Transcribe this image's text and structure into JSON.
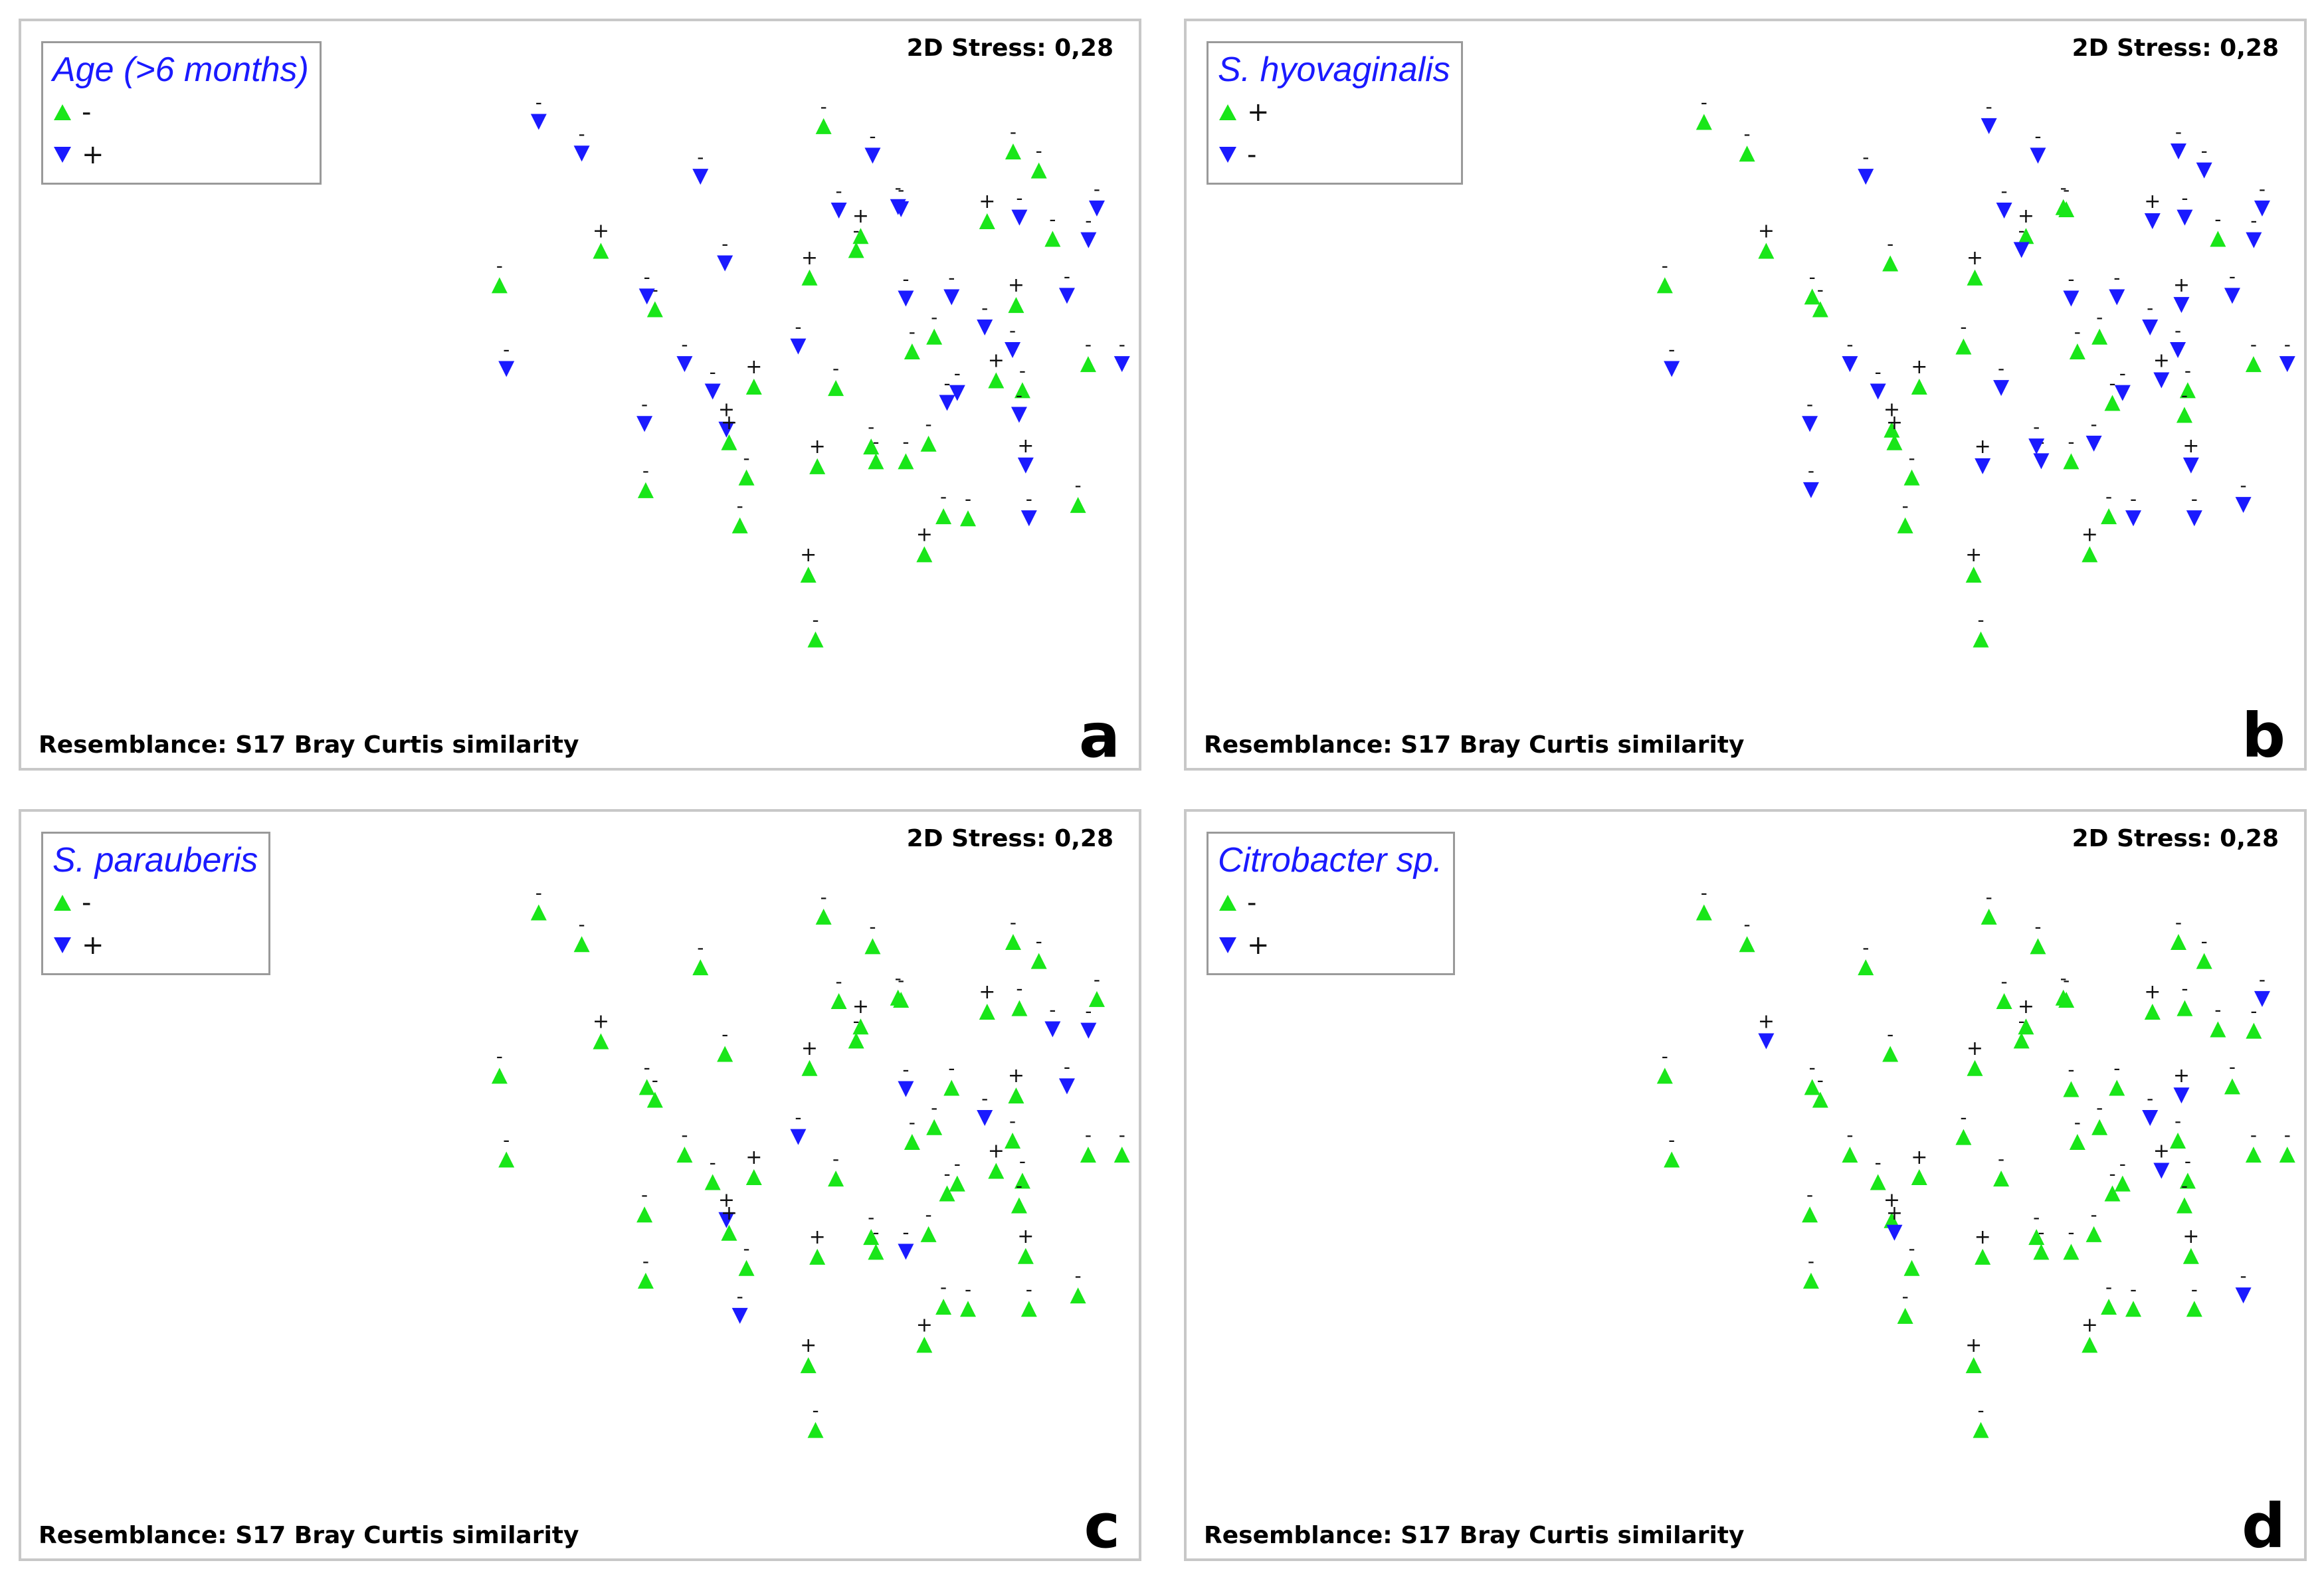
{
  "colors": {
    "green": "#19e619",
    "blue": "#1a1aff",
    "border": "#c8c8c8"
  },
  "points": [
    {
      "x": 93.3,
      "y": 25.7,
      "lbl": "-"
    },
    {
      "x": 95.6,
      "y": 37.6,
      "lbl": "-"
    },
    {
      "x": 145.3,
      "y": 29.1,
      "lbl": "-"
    },
    {
      "x": 120.8,
      "y": 7.0,
      "lbl": "-"
    },
    {
      "x": 160.5,
      "y": 10.3,
      "lbl": "-"
    },
    {
      "x": 106.4,
      "y": 2.5,
      "lbl": "-"
    },
    {
      "x": 127.2,
      "y": 20.8,
      "lbl": "+"
    },
    {
      "x": 142.6,
      "y": 27.3,
      "lbl": "-"
    },
    {
      "x": 168.7,
      "y": 22.6,
      "lbl": "-"
    },
    {
      "x": 155.2,
      "y": 36.9,
      "lbl": "-"
    },
    {
      "x": 164.6,
      "y": 40.8,
      "lbl": "-"
    },
    {
      "x": 178.4,
      "y": 40.1,
      "lbl": "+"
    },
    {
      "x": 169.2,
      "y": 46.2,
      "lbl": "+"
    },
    {
      "x": 170.1,
      "y": 48.0,
      "lbl": "+"
    },
    {
      "x": 175.9,
      "y": 53.0,
      "lbl": "-"
    },
    {
      "x": 173.7,
      "y": 59.8,
      "lbl": "-"
    },
    {
      "x": 196.6,
      "y": 66.8,
      "lbl": "+"
    },
    {
      "x": 199.6,
      "y": 51.4,
      "lbl": "+"
    },
    {
      "x": 231.3,
      "y": 35.1,
      "lbl": "-"
    },
    {
      "x": 238.7,
      "y": 33.0,
      "lbl": "-"
    },
    {
      "x": 236.8,
      "y": 48.2,
      "lbl": "-"
    },
    {
      "x": 235.4,
      "y": 63.9,
      "lbl": "+"
    },
    {
      "x": 243.0,
      "y": 42.4,
      "lbl": "-"
    },
    {
      "x": 268.2,
      "y": 40.6,
      "lbl": "-"
    },
    {
      "x": 290.2,
      "y": 36.9,
      "lbl": "-"
    },
    {
      "x": 241.8,
      "y": 58.5,
      "lbl": "-"
    },
    {
      "x": 205.8,
      "y": 40.3,
      "lbl": "-"
    },
    {
      "x": 197.0,
      "y": 24.6,
      "lbl": "+"
    },
    {
      "x": 201.7,
      "y": 3.1,
      "lbl": "-"
    },
    {
      "x": 193.2,
      "y": 34.4,
      "lbl": "-"
    },
    {
      "x": 199.0,
      "y": 76.0,
      "lbl": "-"
    },
    {
      "x": 229.2,
      "y": 50.7,
      "lbl": "-"
    },
    {
      "x": 259.4,
      "y": 39.2,
      "lbl": "+"
    },
    {
      "x": 255.6,
      "y": 31.7,
      "lbl": "-"
    },
    {
      "x": 264.9,
      "y": 34.9,
      "lbl": "-"
    },
    {
      "x": 266.1,
      "y": 28.5,
      "lbl": "+"
    },
    {
      "x": 256.4,
      "y": 16.6,
      "lbl": "+"
    },
    {
      "x": 273.7,
      "y": 9.4,
      "lbl": "-"
    },
    {
      "x": 301.5,
      "y": 36.9,
      "lbl": "-"
    },
    {
      "x": 290.3,
      "y": 19.3,
      "lbl": "-"
    },
    {
      "x": 229.2,
      "y": 27.6,
      "lbl": "-"
    },
    {
      "x": 269.3,
      "y": 51.3,
      "lbl": "+"
    },
    {
      "x": 283.1,
      "y": 27.2,
      "lbl": "-"
    },
    {
      "x": 270.4,
      "y": 58.8,
      "lbl": "-"
    },
    {
      "x": 278.3,
      "y": 19.1,
      "lbl": "-"
    },
    {
      "x": 250.0,
      "y": 58.8,
      "lbl": "-"
    },
    {
      "x": 267.2,
      "y": 16.1,
      "lbl": "-"
    },
    {
      "x": 214.1,
      "y": 18.7,
      "lbl": "+"
    },
    {
      "x": 226.6,
      "y": 14.6,
      "lbl": "-"
    },
    {
      "x": 219.2,
      "y": 50.7,
      "lbl": "-"
    },
    {
      "x": 206.8,
      "y": 15.1,
      "lbl": "-"
    },
    {
      "x": 141.8,
      "y": 45.4,
      "lbl": "-"
    },
    {
      "x": 142.2,
      "y": 54.8,
      "lbl": "-"
    },
    {
      "x": 227.6,
      "y": 14.9,
      "lbl": "-"
    },
    {
      "x": 217.6,
      "y": 48.6,
      "lbl": "-"
    },
    {
      "x": 246.4,
      "y": 41.0,
      "lbl": "-"
    },
    {
      "x": 218.1,
      "y": 7.3,
      "lbl": "-"
    },
    {
      "x": 244.5,
      "y": 27.4,
      "lbl": "-"
    },
    {
      "x": 267.1,
      "y": 44.1,
      "lbl": "-"
    },
    {
      "x": 265.1,
      "y": 6.7,
      "lbl": "-"
    },
    {
      "x": 293.1,
      "y": 14.8,
      "lbl": "-"
    },
    {
      "x": 212.6,
      "y": 20.7,
      "lbl": "-"
    },
    {
      "x": 286.8,
      "y": 56.9,
      "lbl": "-"
    }
  ],
  "panels": [
    {
      "letter": "a",
      "stress": "2D Stress: 0,28",
      "resemblance": "Resemblance: S17 Bray Curtis similarity",
      "legend": {
        "title": "Age (>6 months)",
        "entries": [
          {
            "shape": "up",
            "color": "#19e619",
            "label": "-"
          },
          {
            "shape": "down",
            "color": "#1a1aff",
            "label": "+"
          }
        ]
      },
      "chart_data": {
        "type": "scatter",
        "title": "Age (>6 months)",
        "xlim": [
          0,
          1
        ],
        "ylim": [
          0,
          1
        ],
        "series": [
          {
            "name": "-",
            "marker": "triangle-up",
            "color": "#19e619"
          },
          {
            "name": "+",
            "marker": "triangle-down",
            "color": "#1a1aff"
          }
        ],
        "groups": [
          0,
          1,
          0,
          1,
          1,
          1,
          0,
          1,
          1,
          1,
          1,
          0,
          1,
          0,
          0,
          0,
          0,
          0,
          0,
          0,
          0,
          0,
          1,
          0,
          0,
          0,
          0,
          0,
          0,
          1,
          0,
          0,
          0,
          1,
          1,
          0,
          0,
          0,
          1,
          1,
          1,
          1,
          1,
          1,
          0,
          0,
          1,
          0,
          1,
          0,
          1,
          1,
          0,
          1,
          0,
          1,
          1,
          1,
          1,
          0,
          1,
          0,
          0
        ]
      }
    },
    {
      "letter": "b",
      "stress": "2D Stress: 0,28",
      "resemblance": "Resemblance: S17 Bray Curtis similarity",
      "legend": {
        "title": "S. hyovaginalis",
        "entries": [
          {
            "shape": "up",
            "color": "#19e619",
            "label": "+"
          },
          {
            "shape": "down",
            "color": "#1a1aff",
            "label": "-"
          }
        ]
      },
      "chart_data": {
        "type": "scatter",
        "title": "S. hyovaginalis",
        "xlim": [
          0,
          1
        ],
        "ylim": [
          0,
          1
        ],
        "series": [
          {
            "name": "+",
            "marker": "triangle-up",
            "color": "#19e619"
          },
          {
            "name": "-",
            "marker": "triangle-down",
            "color": "#1a1aff"
          }
        ],
        "groups": [
          0,
          1,
          0,
          0,
          1,
          0,
          0,
          0,
          0,
          1,
          1,
          0,
          0,
          0,
          0,
          0,
          0,
          1,
          0,
          0,
          1,
          0,
          0,
          0,
          0,
          0,
          1,
          0,
          1,
          0,
          0,
          0,
          1,
          1,
          1,
          1,
          1,
          1,
          1,
          1,
          1,
          1,
          1,
          1,
          0,
          1,
          1,
          0,
          0,
          1,
          1,
          1,
          1,
          0,
          1,
          1,
          1,
          1,
          0,
          1,
          1,
          1,
          1
        ]
      }
    },
    {
      "letter": "c",
      "stress": "2D Stress: 0,28",
      "resemblance": "Resemblance: S17 Bray Curtis similarity",
      "legend": {
        "title": "S. parauberis",
        "entries": [
          {
            "shape": "up",
            "color": "#19e619",
            "label": "-"
          },
          {
            "shape": "down",
            "color": "#1a1aff",
            "label": "+"
          }
        ]
      },
      "chart_data": {
        "type": "scatter",
        "title": "S. parauberis",
        "xlim": [
          0,
          1
        ],
        "ylim": [
          0,
          1
        ],
        "series": [
          {
            "name": "-",
            "marker": "triangle-up",
            "color": "#19e619"
          },
          {
            "name": "+",
            "marker": "triangle-down",
            "color": "#1a1aff"
          }
        ],
        "groups": [
          0,
          0,
          0,
          0,
          0,
          0,
          0,
          0,
          0,
          0,
          0,
          0,
          1,
          0,
          0,
          1,
          0,
          0,
          0,
          0,
          0,
          0,
          0,
          0,
          0,
          0,
          0,
          0,
          0,
          1,
          0,
          1,
          0,
          1,
          0,
          0,
          0,
          0,
          0,
          1,
          1,
          0,
          1,
          0,
          1,
          0,
          0,
          0,
          0,
          0,
          0,
          0,
          0,
          0,
          0,
          0,
          0,
          0,
          0,
          0,
          0,
          0,
          0
        ]
      }
    },
    {
      "letter": "d",
      "stress": "2D Stress: 0,28",
      "resemblance": "Resemblance: S17 Bray Curtis similarity",
      "legend": {
        "title": "Citrobacter sp.",
        "entries": [
          {
            "shape": "up",
            "color": "#19e619",
            "label": "-"
          },
          {
            "shape": "down",
            "color": "#1a1aff",
            "label": "+"
          }
        ]
      },
      "chart_data": {
        "type": "scatter",
        "title": "Citrobacter sp.",
        "xlim": [
          0,
          1
        ],
        "ylim": [
          0,
          1
        ],
        "series": [
          {
            "name": "-",
            "marker": "triangle-up",
            "color": "#19e619"
          },
          {
            "name": "+",
            "marker": "triangle-down",
            "color": "#1a1aff"
          }
        ],
        "groups": [
          0,
          0,
          0,
          0,
          0,
          0,
          1,
          0,
          0,
          0,
          0,
          0,
          0,
          1,
          0,
          0,
          0,
          0,
          0,
          0,
          0,
          0,
          0,
          0,
          0,
          0,
          0,
          0,
          0,
          0,
          0,
          0,
          1,
          1,
          0,
          1,
          0,
          0,
          0,
          0,
          0,
          0,
          0,
          0,
          0,
          0,
          0,
          0,
          0,
          0,
          0,
          0,
          0,
          0,
          0,
          0,
          0,
          0,
          0,
          0,
          1,
          0,
          1
        ]
      }
    }
  ]
}
